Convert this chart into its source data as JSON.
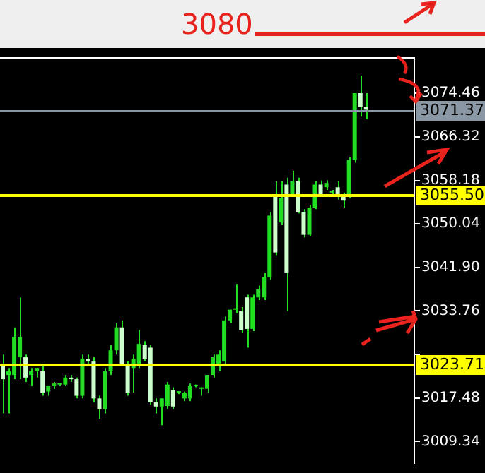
{
  "chart_data": {
    "type": "candlestick",
    "color": "#22dd22",
    "colors": [
      "#ccffcc",
      "#22dd22",
      "#22dd22",
      "#22dd22",
      "#ccffcc",
      "#22dd22",
      "#22dd22",
      "#ccffcc",
      "#22dd22",
      "#22dd22",
      "#22dd22",
      "#22dd22",
      "#ccffcc",
      "#ccffcc",
      "#22dd22",
      "#ccffcc",
      "#ccffcc",
      "#ccffcc",
      "#22dd22",
      "#22dd22",
      "#22dd22",
      "#ccffcc",
      "#ccffcc",
      "#22dd22",
      "#22dd22",
      "#ccffcc",
      "#ccffcc",
      "#ccffcc",
      "#22dd22",
      "#22dd22",
      "#ccffcc",
      "#22dd22",
      "#22dd22",
      "#22dd22",
      "#22dd22",
      "#22dd22",
      "#22dd22",
      "#22dd22",
      "#22dd22",
      "#22dd22",
      "#22dd22",
      "#22dd22",
      "#ccffcc",
      "#ccffcc",
      "#22dd22",
      "#22dd22",
      "#22dd22",
      "#22dd22",
      "#ccffcc",
      "#22dd22",
      "#ccffcc",
      "#22dd22",
      "#ccffcc",
      "#ccffcc",
      "#22dd22",
      "#22dd22",
      "#ccffcc",
      "#22dd22",
      "#22dd22",
      "#ccffcc",
      "#ccffcc",
      "#22dd22",
      "#22dd22",
      "#ccffcc",
      "#ccffcc",
      null,
      null,
      null,
      null,
      null,
      null,
      null,
      null
    ],
    "categories": [
      null,
      null,
      null,
      null,
      null,
      null,
      null,
      null,
      null,
      null,
      null,
      null,
      null,
      null,
      null,
      null,
      null,
      null,
      null,
      null,
      null,
      null,
      null,
      null,
      null,
      null,
      null,
      null,
      null,
      null,
      null,
      null,
      null,
      null,
      null,
      null,
      null,
      null,
      null,
      null,
      null,
      null,
      null,
      null,
      null,
      null,
      null,
      null,
      null,
      null,
      null,
      null,
      null,
      null,
      null,
      null,
      null,
      null,
      null,
      null,
      null,
      null,
      null,
      null,
      null,
      null,
      null,
      null,
      null,
      null,
      null,
      null,
      null
    ],
    "ohlc": [
      [
        3023.6,
        3025.6,
        3014.6,
        3021.0
      ],
      [
        3021.8,
        3023.1,
        3014.6,
        3022.5
      ],
      [
        3021.8,
        3030.7,
        3021.0,
        3028.9
      ],
      [
        3025.1,
        3036.3,
        3021.0,
        3028.9
      ],
      [
        3025.1,
        3025.6,
        3020.5,
        3021.3
      ],
      [
        3021.8,
        3023.1,
        3019.7,
        3022.5
      ],
      [
        3022.5,
        3023.1,
        3021.3,
        3023.1
      ],
      [
        3022.5,
        3023.6,
        3017.9,
        3018.5
      ],
      [
        3018.7,
        3019.7,
        3017.9,
        3019.7
      ],
      [
        3019.7,
        3020.5,
        3019.2,
        3020.2
      ],
      [
        3020.0,
        3020.2,
        3019.7,
        3020.0
      ],
      [
        3020.0,
        3021.8,
        3019.7,
        3021.3
      ],
      [
        3021.3,
        3021.8,
        3020.5,
        3021.0
      ],
      [
        3021.0,
        3021.3,
        3017.4,
        3017.9
      ],
      [
        3017.9,
        3025.6,
        3017.4,
        3024.8
      ],
      [
        3024.8,
        3025.6,
        3023.6,
        3024.3
      ],
      [
        3024.3,
        3025.1,
        3016.7,
        3017.4
      ],
      [
        3017.4,
        3017.9,
        3013.6,
        3015.4
      ],
      [
        3015.4,
        3023.1,
        3014.6,
        3022.5
      ],
      [
        3022.5,
        3027.4,
        3021.8,
        3026.4
      ],
      [
        3026.4,
        3031.5,
        3025.6,
        3030.7
      ],
      [
        3030.7,
        3032.0,
        3023.6,
        3023.8
      ],
      [
        3023.8,
        3024.3,
        3017.9,
        3018.5
      ],
      [
        3023.1,
        3025.6,
        3018.5,
        3024.8
      ],
      [
        3023.6,
        3030.2,
        3023.1,
        3027.6
      ],
      [
        3027.4,
        3028.1,
        3024.3,
        3024.8
      ],
      [
        3026.9,
        3027.4,
        3016.2,
        3016.7
      ],
      [
        3016.7,
        3017.4,
        3014.6,
        3015.9
      ],
      [
        3015.9,
        3017.4,
        3012.4,
        3017.4
      ],
      [
        3016.0,
        3020.5,
        3015.4,
        3020.0
      ],
      [
        3019.0,
        3019.5,
        3015.4,
        3015.9
      ],
      [
        3018.5,
        3018.7,
        3018.2,
        3018.5
      ],
      [
        3017.4,
        3018.7,
        3016.9,
        3018.5
      ],
      [
        3017.4,
        3020.2,
        3016.9,
        3019.7
      ],
      [
        3019.7,
        3020.0,
        3019.5,
        3019.7
      ],
      [
        3019.2,
        3019.5,
        3017.9,
        3019.2
      ],
      [
        3019.2,
        3021.8,
        3018.5,
        3021.8
      ],
      [
        3021.8,
        3025.6,
        3021.3,
        3025.1
      ],
      [
        3023.6,
        3026.4,
        3022.5,
        3025.6
      ],
      [
        3024.3,
        3032.7,
        3023.6,
        3032.0
      ],
      [
        3032.0,
        3034.0,
        3031.5,
        3034.0
      ],
      [
        3034.0,
        3038.8,
        3033.3,
        3034.0
      ],
      [
        3033.7,
        3034.5,
        3029.7,
        3030.2
      ],
      [
        3036.3,
        3036.8,
        3026.9,
        3030.4
      ],
      [
        3030.4,
        3036.8,
        3030.0,
        3036.3
      ],
      [
        3036.3,
        3038.5,
        3035.8,
        3037.8
      ],
      [
        3036.3,
        3040.9,
        3035.8,
        3040.1
      ],
      [
        3040.1,
        3052.3,
        3039.6,
        3051.6
      ],
      [
        3055.6,
        3058.0,
        3044.2,
        3044.7
      ],
      [
        3050.3,
        3058.0,
        3049.8,
        3054.9
      ],
      [
        3057.4,
        3058.7,
        3033.7,
        3040.9
      ],
      [
        3055.6,
        3060.0,
        3055.1,
        3058.0
      ],
      [
        3058.0,
        3058.7,
        3052.0,
        3052.3
      ],
      [
        3052.3,
        3052.8,
        3047.5,
        3048.0
      ],
      [
        3048.0,
        3053.6,
        3047.7,
        3053.1
      ],
      [
        3053.1,
        3058.0,
        3052.8,
        3057.4
      ],
      [
        3057.4,
        3058.2,
        3055.1,
        3055.4
      ],
      [
        3056.9,
        3058.2,
        3056.4,
        3057.7
      ],
      [
        3055.9,
        3056.4,
        3055.6,
        3055.9
      ],
      [
        3056.9,
        3058.0,
        3054.6,
        3055.4
      ],
      [
        3055.4,
        3055.9,
        3053.1,
        3054.4
      ],
      [
        3055.6,
        3062.5,
        3054.9,
        3062.0
      ],
      [
        3062.0,
        3074.5,
        3061.5,
        3074.5
      ],
      [
        3074.5,
        3077.8,
        3070.1,
        3071.9
      ],
      [
        3071.9,
        3074.5,
        3069.6,
        3071.4
      ],
      null,
      null,
      null,
      null,
      null,
      null,
      null,
      null
    ],
    "ylim": [
      3005.3,
      3081.1
    ],
    "yticks": [
      3009.34,
      3017.48,
      {
        "value": 3025.62,
        "label": null
      },
      3033.76,
      {
        "value": 3041.9,
        "label": "3041.90"
      },
      3050.04,
      3058.18,
      3066.32,
      3074.46
    ],
    "tick_labels": "y",
    "grid": false,
    "legend": false,
    "ref_lines": [
      {
        "axis": "y",
        "value": 3071.37,
        "label": "3071.37",
        "color": "#8a98a6"
      },
      {
        "axis": "y",
        "value": 3055.5,
        "label": "3055.50",
        "color": "#ffff00"
      },
      {
        "axis": "y",
        "value": 3023.71,
        "label": "3023.71",
        "color": "#ffff00"
      }
    ],
    "annotations": [
      "3080"
    ]
  }
}
